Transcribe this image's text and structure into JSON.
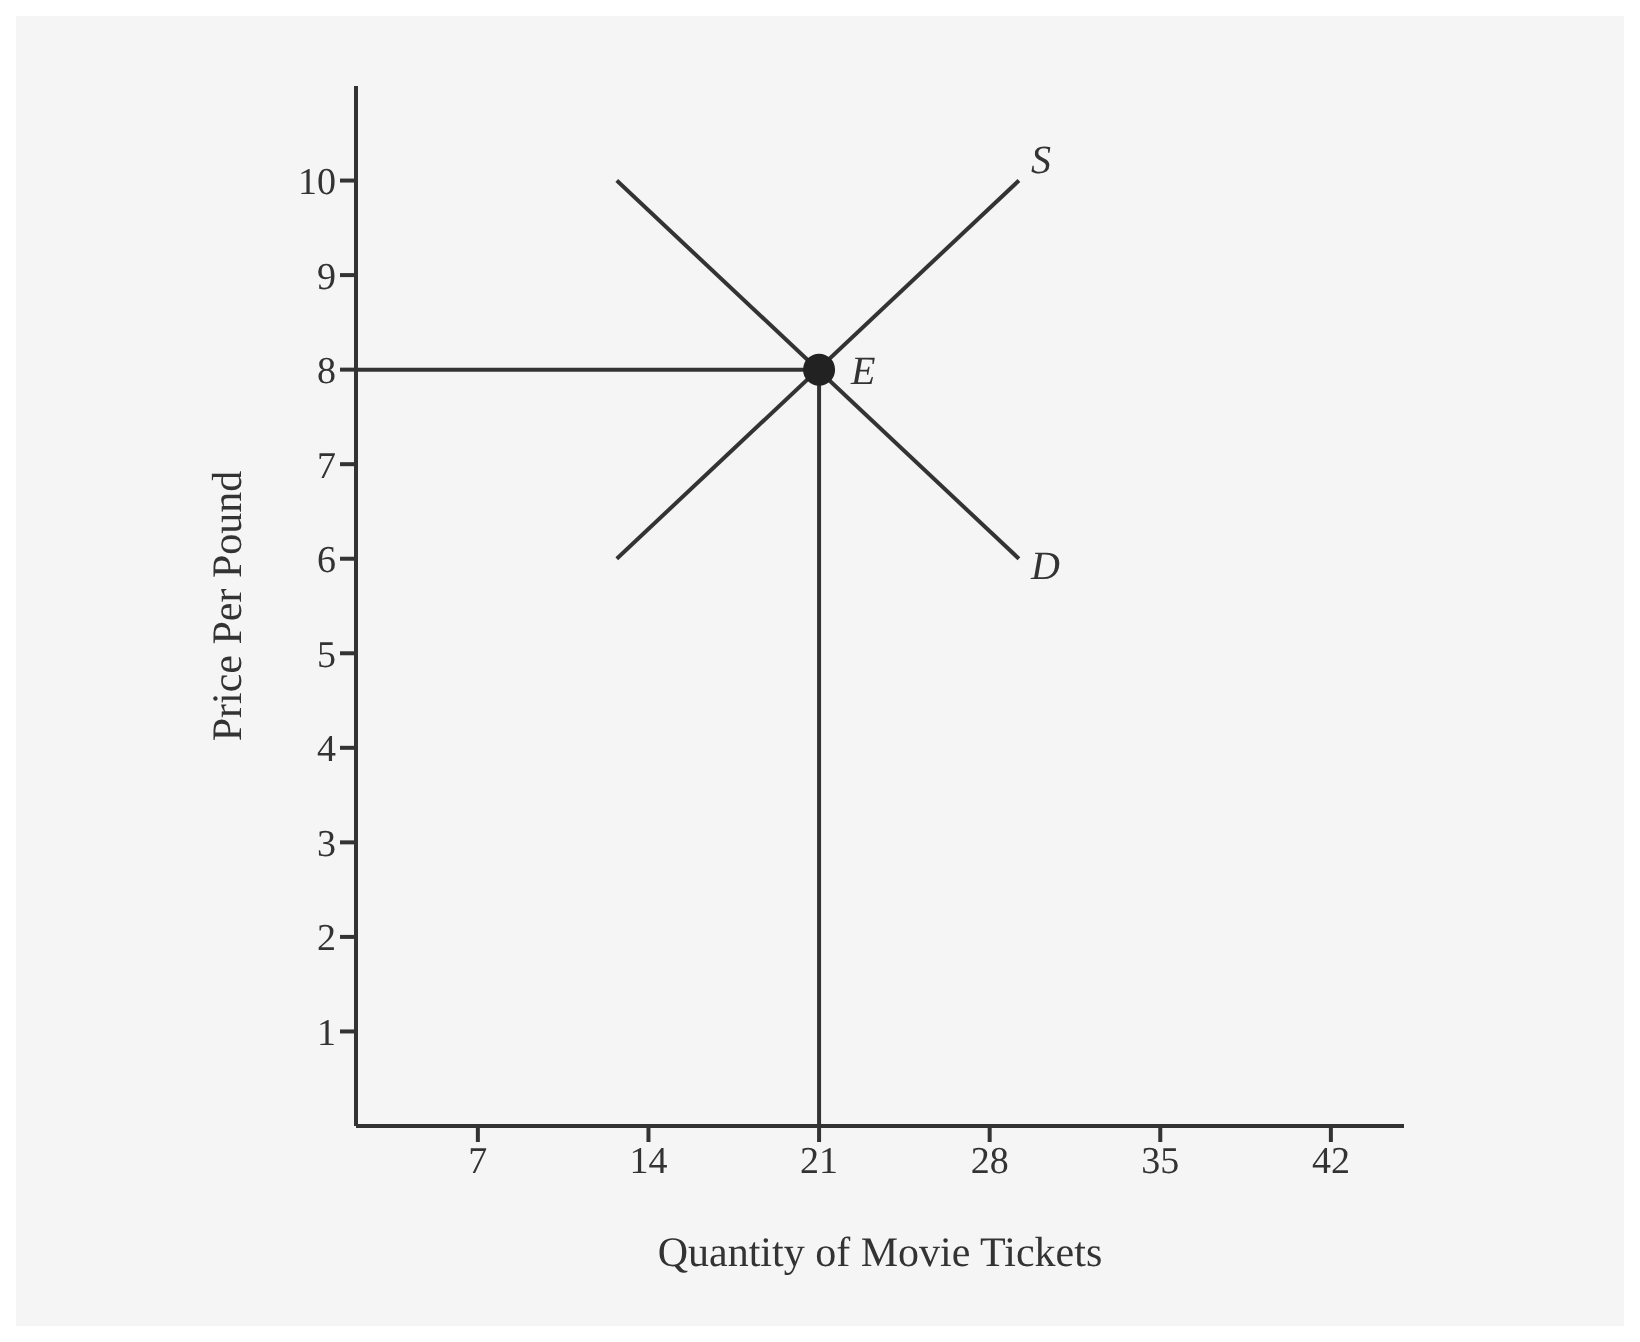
{
  "chart_data": {
    "type": "line",
    "xlabel": "Quantity of Movie Tickets",
    "ylabel": "Price Per Pound",
    "xlim": [
      2,
      45
    ],
    "ylim": [
      0,
      11
    ],
    "xticks": [
      7,
      14,
      21,
      28,
      35,
      42
    ],
    "yticks": [
      1,
      2,
      3,
      4,
      5,
      6,
      7,
      8,
      9,
      10
    ],
    "marker": "none",
    "line_style": "solid",
    "series": [
      {
        "name": "S",
        "color": "#333333",
        "x": [
          12.7,
          29.2
        ],
        "values": [
          6,
          10
        ]
      },
      {
        "name": "D",
        "color": "#333333",
        "x": [
          12.7,
          29.2
        ],
        "values": [
          10,
          6
        ]
      },
      {
        "color": "#333333",
        "x": [
          2,
          21
        ],
        "values": [
          8,
          8
        ]
      },
      {
        "color": "#333333",
        "x": [
          21,
          21
        ],
        "values": [
          0,
          8
        ]
      },
      {
        "name": "E",
        "type": "scatter",
        "marker": "circle",
        "color": "#222222",
        "x": [
          21
        ],
        "values": [
          8
        ]
      }
    ]
  }
}
